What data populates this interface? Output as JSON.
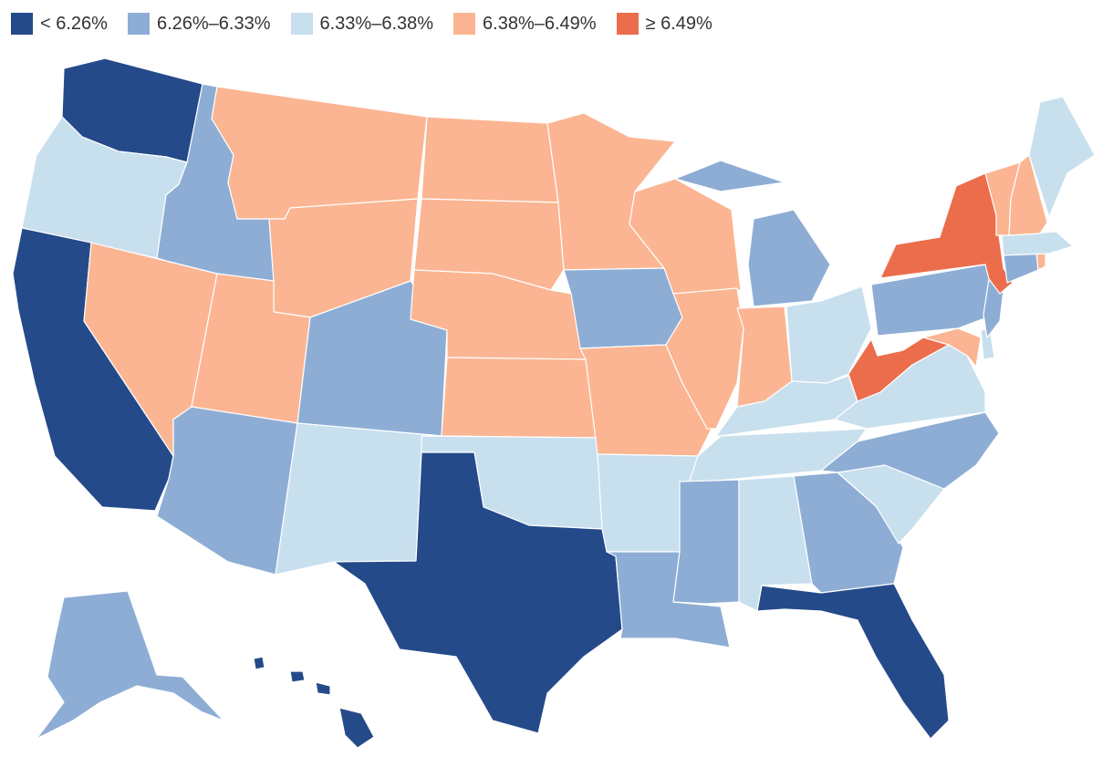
{
  "legend": [
    {
      "label": "< 6.26%",
      "color": "#254a8a"
    },
    {
      "label": "6.26%–6.33%",
      "color": "#8dadd5"
    },
    {
      "label": "6.33%–6.38%",
      "color": "#c8dfee"
    },
    {
      "label": "6.38%–6.49%",
      "color": "#fbb592"
    },
    {
      "label": "≥ 6.49%",
      "color": "#ec6d4c"
    }
  ],
  "states": {
    "WA": 0,
    "OR": 2,
    "CA": 0,
    "NV": 3,
    "ID": 1,
    "MT": 3,
    "WY": 3,
    "UT": 3,
    "AZ": 1,
    "CO": 1,
    "NM": 2,
    "TX": 0,
    "ND": 3,
    "SD": 3,
    "NE": 3,
    "KS": 3,
    "OK": 2,
    "MN": 3,
    "IA": 1,
    "MO": 3,
    "AR": 2,
    "LA": 1,
    "WI": 3,
    "IL": 3,
    "MI": 1,
    "IN": 3,
    "OH": 2,
    "KY": 2,
    "TN": 2,
    "MS": 1,
    "AL": 2,
    "GA": 1,
    "FL": 0,
    "SC": 2,
    "NC": 1,
    "VA": 2,
    "WV": 4,
    "MD": 3,
    "DE": 2,
    "PA": 1,
    "NJ": 1,
    "NY": 4,
    "CT": 1,
    "RI": 3,
    "MA": 2,
    "VT": 3,
    "NH": 3,
    "ME": 2,
    "AK": 1,
    "HI": 0
  }
}
